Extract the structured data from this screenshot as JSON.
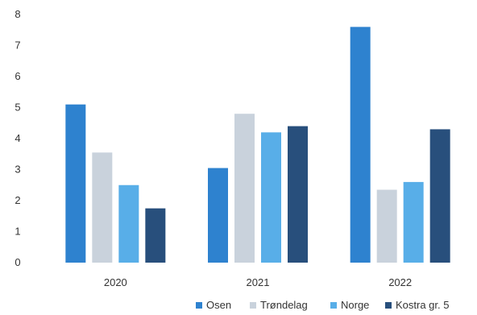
{
  "chart_data": {
    "type": "bar",
    "categories": [
      "2020",
      "2021",
      "2022"
    ],
    "series": [
      {
        "name": "Osen",
        "values": [
          5.1,
          3.05,
          7.6
        ],
        "color": "#2e82cf"
      },
      {
        "name": "Trøndelag",
        "values": [
          3.55,
          4.8,
          2.35
        ],
        "color": "#c9d2dc"
      },
      {
        "name": "Norge",
        "values": [
          2.5,
          4.2,
          2.6
        ],
        "color": "#58aee8"
      },
      {
        "name": "Kostra gr. 5",
        "values": [
          1.75,
          4.4,
          4.3
        ],
        "color": "#284f7c"
      }
    ],
    "ylim": [
      0,
      8
    ],
    "yticks": [
      "0",
      "1",
      "2",
      "3",
      "4",
      "5",
      "6",
      "7",
      "8"
    ],
    "grid": false,
    "legend_position": "bottom-right"
  }
}
